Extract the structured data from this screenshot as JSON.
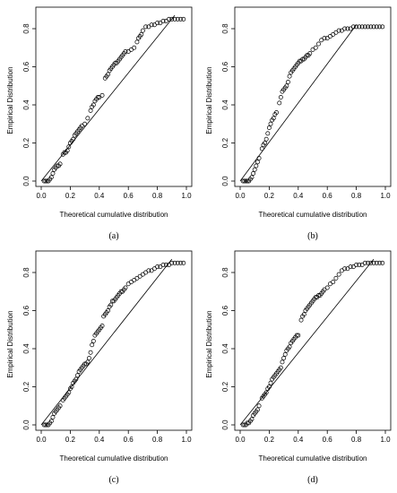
{
  "chart_data": [
    {
      "type": "scatter",
      "panel": "(a)",
      "xlabel": "Theoretical cumulative distribution",
      "ylabel": "Empirical Distribution",
      "xlim": [
        0,
        1
      ],
      "ylim": [
        0,
        0.85
      ],
      "xticks": [
        "0.0",
        "0.2",
        "0.4",
        "0.6",
        "0.8",
        "1.0"
      ],
      "yticks": [
        "0.0",
        "0.2",
        "0.4",
        "0.6",
        "0.8"
      ],
      "reference_line": {
        "from": [
          0,
          0
        ],
        "to": [
          0.92,
          0.87
        ]
      },
      "points": [
        [
          0.02,
          0.0
        ],
        [
          0.03,
          0.0
        ],
        [
          0.04,
          0.0
        ],
        [
          0.05,
          0.0
        ],
        [
          0.06,
          0.01
        ],
        [
          0.07,
          0.02
        ],
        [
          0.08,
          0.04
        ],
        [
          0.09,
          0.06
        ],
        [
          0.1,
          0.07
        ],
        [
          0.11,
          0.08
        ],
        [
          0.12,
          0.08
        ],
        [
          0.13,
          0.09
        ],
        [
          0.15,
          0.14
        ],
        [
          0.16,
          0.15
        ],
        [
          0.17,
          0.15
        ],
        [
          0.18,
          0.16
        ],
        [
          0.19,
          0.18
        ],
        [
          0.2,
          0.2
        ],
        [
          0.21,
          0.21
        ],
        [
          0.22,
          0.22
        ],
        [
          0.23,
          0.24
        ],
        [
          0.24,
          0.25
        ],
        [
          0.25,
          0.26
        ],
        [
          0.26,
          0.27
        ],
        [
          0.27,
          0.28
        ],
        [
          0.28,
          0.29
        ],
        [
          0.3,
          0.3
        ],
        [
          0.32,
          0.33
        ],
        [
          0.34,
          0.37
        ],
        [
          0.35,
          0.39
        ],
        [
          0.36,
          0.4
        ],
        [
          0.37,
          0.42
        ],
        [
          0.38,
          0.43
        ],
        [
          0.39,
          0.44
        ],
        [
          0.4,
          0.44
        ],
        [
          0.42,
          0.45
        ],
        [
          0.44,
          0.54
        ],
        [
          0.45,
          0.55
        ],
        [
          0.46,
          0.56
        ],
        [
          0.47,
          0.58
        ],
        [
          0.48,
          0.59
        ],
        [
          0.49,
          0.6
        ],
        [
          0.5,
          0.61
        ],
        [
          0.51,
          0.62
        ],
        [
          0.52,
          0.62
        ],
        [
          0.53,
          0.63
        ],
        [
          0.54,
          0.64
        ],
        [
          0.55,
          0.65
        ],
        [
          0.56,
          0.66
        ],
        [
          0.57,
          0.67
        ],
        [
          0.58,
          0.68
        ],
        [
          0.6,
          0.68
        ],
        [
          0.62,
          0.69
        ],
        [
          0.64,
          0.7
        ],
        [
          0.66,
          0.73
        ],
        [
          0.67,
          0.75
        ],
        [
          0.68,
          0.76
        ],
        [
          0.69,
          0.77
        ],
        [
          0.7,
          0.79
        ],
        [
          0.72,
          0.81
        ],
        [
          0.74,
          0.81
        ],
        [
          0.76,
          0.82
        ],
        [
          0.78,
          0.82
        ],
        [
          0.8,
          0.83
        ],
        [
          0.82,
          0.83
        ],
        [
          0.84,
          0.84
        ],
        [
          0.86,
          0.84
        ],
        [
          0.88,
          0.85
        ],
        [
          0.9,
          0.85
        ],
        [
          0.92,
          0.85
        ],
        [
          0.94,
          0.85
        ],
        [
          0.96,
          0.85
        ],
        [
          0.98,
          0.85
        ]
      ]
    },
    {
      "type": "scatter",
      "panel": "(b)",
      "xlabel": "Theoretical cumulative distribution",
      "ylabel": "Empirical Distribution",
      "xlim": [
        0,
        1
      ],
      "ylim": [
        0,
        0.8
      ],
      "xticks": [
        "0.0",
        "0.2",
        "0.4",
        "0.6",
        "0.8",
        "1.0"
      ],
      "yticks": [
        "0.0",
        "0.2",
        "0.4",
        "0.6",
        "0.8"
      ],
      "reference_line": {
        "from": [
          0,
          0
        ],
        "to": [
          0.8,
          0.82
        ]
      },
      "points": [
        [
          0.02,
          0.0
        ],
        [
          0.03,
          0.0
        ],
        [
          0.04,
          0.0
        ],
        [
          0.05,
          0.0
        ],
        [
          0.06,
          0.0
        ],
        [
          0.07,
          0.01
        ],
        [
          0.08,
          0.02
        ],
        [
          0.09,
          0.04
        ],
        [
          0.1,
          0.06
        ],
        [
          0.11,
          0.08
        ],
        [
          0.12,
          0.1
        ],
        [
          0.13,
          0.12
        ],
        [
          0.15,
          0.17
        ],
        [
          0.16,
          0.19
        ],
        [
          0.17,
          0.2
        ],
        [
          0.18,
          0.22
        ],
        [
          0.19,
          0.25
        ],
        [
          0.2,
          0.28
        ],
        [
          0.21,
          0.3
        ],
        [
          0.22,
          0.32
        ],
        [
          0.23,
          0.33
        ],
        [
          0.24,
          0.35
        ],
        [
          0.25,
          0.36
        ],
        [
          0.27,
          0.41
        ],
        [
          0.28,
          0.44
        ],
        [
          0.29,
          0.47
        ],
        [
          0.3,
          0.48
        ],
        [
          0.31,
          0.49
        ],
        [
          0.32,
          0.5
        ],
        [
          0.33,
          0.52
        ],
        [
          0.34,
          0.55
        ],
        [
          0.35,
          0.57
        ],
        [
          0.36,
          0.58
        ],
        [
          0.37,
          0.59
        ],
        [
          0.38,
          0.6
        ],
        [
          0.39,
          0.61
        ],
        [
          0.4,
          0.62
        ],
        [
          0.41,
          0.63
        ],
        [
          0.42,
          0.63
        ],
        [
          0.43,
          0.64
        ],
        [
          0.44,
          0.64
        ],
        [
          0.45,
          0.65
        ],
        [
          0.46,
          0.66
        ],
        [
          0.47,
          0.66
        ],
        [
          0.48,
          0.67
        ],
        [
          0.5,
          0.69
        ],
        [
          0.52,
          0.7
        ],
        [
          0.54,
          0.72
        ],
        [
          0.56,
          0.74
        ],
        [
          0.58,
          0.75
        ],
        [
          0.6,
          0.75
        ],
        [
          0.62,
          0.76
        ],
        [
          0.64,
          0.77
        ],
        [
          0.66,
          0.78
        ],
        [
          0.68,
          0.79
        ],
        [
          0.7,
          0.79
        ],
        [
          0.72,
          0.8
        ],
        [
          0.74,
          0.8
        ],
        [
          0.76,
          0.8
        ],
        [
          0.78,
          0.81
        ],
        [
          0.8,
          0.81
        ],
        [
          0.82,
          0.81
        ],
        [
          0.84,
          0.81
        ],
        [
          0.86,
          0.81
        ],
        [
          0.88,
          0.81
        ],
        [
          0.9,
          0.81
        ],
        [
          0.92,
          0.81
        ],
        [
          0.94,
          0.81
        ],
        [
          0.96,
          0.81
        ],
        [
          0.98,
          0.81
        ]
      ]
    },
    {
      "type": "scatter",
      "panel": "(c)",
      "xlabel": "Theoretical cumulative distribution",
      "ylabel": "Empirical Distribution",
      "xlim": [
        0,
        1
      ],
      "ylim": [
        0,
        0.85
      ],
      "xticks": [
        "0.0",
        "0.2",
        "0.4",
        "0.6",
        "0.8",
        "1.0"
      ],
      "yticks": [
        "0.0",
        "0.2",
        "0.4",
        "0.6",
        "0.8"
      ],
      "reference_line": {
        "from": [
          0,
          0
        ],
        "to": [
          0.9,
          0.87
        ]
      },
      "points": [
        [
          0.02,
          0.0
        ],
        [
          0.03,
          0.0
        ],
        [
          0.04,
          0.0
        ],
        [
          0.05,
          0.0
        ],
        [
          0.06,
          0.01
        ],
        [
          0.07,
          0.02
        ],
        [
          0.08,
          0.04
        ],
        [
          0.09,
          0.06
        ],
        [
          0.1,
          0.07
        ],
        [
          0.11,
          0.08
        ],
        [
          0.12,
          0.09
        ],
        [
          0.13,
          0.1
        ],
        [
          0.15,
          0.13
        ],
        [
          0.16,
          0.14
        ],
        [
          0.17,
          0.15
        ],
        [
          0.18,
          0.16
        ],
        [
          0.19,
          0.17
        ],
        [
          0.2,
          0.19
        ],
        [
          0.21,
          0.2
        ],
        [
          0.22,
          0.22
        ],
        [
          0.23,
          0.23
        ],
        [
          0.24,
          0.24
        ],
        [
          0.25,
          0.26
        ],
        [
          0.26,
          0.28
        ],
        [
          0.27,
          0.29
        ],
        [
          0.28,
          0.3
        ],
        [
          0.29,
          0.31
        ],
        [
          0.3,
          0.32
        ],
        [
          0.31,
          0.32
        ],
        [
          0.32,
          0.33
        ],
        [
          0.33,
          0.35
        ],
        [
          0.34,
          0.38
        ],
        [
          0.35,
          0.42
        ],
        [
          0.36,
          0.44
        ],
        [
          0.37,
          0.47
        ],
        [
          0.38,
          0.48
        ],
        [
          0.39,
          0.49
        ],
        [
          0.4,
          0.5
        ],
        [
          0.41,
          0.51
        ],
        [
          0.42,
          0.52
        ],
        [
          0.43,
          0.57
        ],
        [
          0.44,
          0.58
        ],
        [
          0.45,
          0.59
        ],
        [
          0.46,
          0.6
        ],
        [
          0.47,
          0.62
        ],
        [
          0.48,
          0.63
        ],
        [
          0.49,
          0.65
        ],
        [
          0.5,
          0.65
        ],
        [
          0.51,
          0.66
        ],
        [
          0.52,
          0.67
        ],
        [
          0.53,
          0.68
        ],
        [
          0.54,
          0.69
        ],
        [
          0.55,
          0.7
        ],
        [
          0.56,
          0.7
        ],
        [
          0.57,
          0.71
        ],
        [
          0.58,
          0.72
        ],
        [
          0.6,
          0.74
        ],
        [
          0.62,
          0.75
        ],
        [
          0.64,
          0.76
        ],
        [
          0.66,
          0.77
        ],
        [
          0.68,
          0.78
        ],
        [
          0.7,
          0.79
        ],
        [
          0.72,
          0.8
        ],
        [
          0.74,
          0.81
        ],
        [
          0.76,
          0.81
        ],
        [
          0.78,
          0.82
        ],
        [
          0.8,
          0.83
        ],
        [
          0.82,
          0.83
        ],
        [
          0.84,
          0.84
        ],
        [
          0.86,
          0.84
        ],
        [
          0.88,
          0.84
        ],
        [
          0.9,
          0.85
        ],
        [
          0.92,
          0.85
        ],
        [
          0.94,
          0.85
        ],
        [
          0.96,
          0.85
        ],
        [
          0.98,
          0.85
        ]
      ]
    },
    {
      "type": "scatter",
      "panel": "(d)",
      "xlabel": "Theoretical cumulative distribution",
      "ylabel": "Empirical Distribution",
      "xlim": [
        0,
        1
      ],
      "ylim": [
        0,
        0.85
      ],
      "xticks": [
        "0.0",
        "0.2",
        "0.4",
        "0.6",
        "0.8",
        "1.0"
      ],
      "yticks": [
        "0.0",
        "0.2",
        "0.4",
        "0.6",
        "0.8"
      ],
      "reference_line": {
        "from": [
          0,
          0
        ],
        "to": [
          0.92,
          0.87
        ]
      },
      "points": [
        [
          0.02,
          0.0
        ],
        [
          0.03,
          0.0
        ],
        [
          0.04,
          0.0
        ],
        [
          0.05,
          0.01
        ],
        [
          0.06,
          0.01
        ],
        [
          0.07,
          0.02
        ],
        [
          0.08,
          0.03
        ],
        [
          0.09,
          0.05
        ],
        [
          0.1,
          0.06
        ],
        [
          0.11,
          0.07
        ],
        [
          0.12,
          0.08
        ],
        [
          0.13,
          0.1
        ],
        [
          0.15,
          0.14
        ],
        [
          0.16,
          0.15
        ],
        [
          0.17,
          0.16
        ],
        [
          0.18,
          0.17
        ],
        [
          0.19,
          0.19
        ],
        [
          0.2,
          0.2
        ],
        [
          0.21,
          0.22
        ],
        [
          0.22,
          0.24
        ],
        [
          0.23,
          0.25
        ],
        [
          0.24,
          0.26
        ],
        [
          0.25,
          0.27
        ],
        [
          0.26,
          0.28
        ],
        [
          0.27,
          0.29
        ],
        [
          0.28,
          0.3
        ],
        [
          0.29,
          0.33
        ],
        [
          0.3,
          0.35
        ],
        [
          0.31,
          0.37
        ],
        [
          0.32,
          0.39
        ],
        [
          0.33,
          0.4
        ],
        [
          0.34,
          0.41
        ],
        [
          0.35,
          0.43
        ],
        [
          0.36,
          0.44
        ],
        [
          0.37,
          0.45
        ],
        [
          0.38,
          0.46
        ],
        [
          0.39,
          0.47
        ],
        [
          0.4,
          0.47
        ],
        [
          0.42,
          0.55
        ],
        [
          0.43,
          0.57
        ],
        [
          0.44,
          0.58
        ],
        [
          0.45,
          0.6
        ],
        [
          0.46,
          0.61
        ],
        [
          0.47,
          0.62
        ],
        [
          0.48,
          0.63
        ],
        [
          0.49,
          0.64
        ],
        [
          0.5,
          0.65
        ],
        [
          0.51,
          0.66
        ],
        [
          0.52,
          0.67
        ],
        [
          0.53,
          0.67
        ],
        [
          0.54,
          0.68
        ],
        [
          0.55,
          0.68
        ],
        [
          0.56,
          0.69
        ],
        [
          0.57,
          0.7
        ],
        [
          0.58,
          0.71
        ],
        [
          0.6,
          0.72
        ],
        [
          0.62,
          0.74
        ],
        [
          0.64,
          0.75
        ],
        [
          0.66,
          0.77
        ],
        [
          0.68,
          0.79
        ],
        [
          0.7,
          0.81
        ],
        [
          0.72,
          0.82
        ],
        [
          0.74,
          0.82
        ],
        [
          0.76,
          0.83
        ],
        [
          0.78,
          0.83
        ],
        [
          0.8,
          0.84
        ],
        [
          0.82,
          0.84
        ],
        [
          0.84,
          0.84
        ],
        [
          0.86,
          0.85
        ],
        [
          0.88,
          0.85
        ],
        [
          0.9,
          0.85
        ],
        [
          0.92,
          0.85
        ],
        [
          0.94,
          0.85
        ],
        [
          0.96,
          0.85
        ],
        [
          0.98,
          0.85
        ]
      ]
    }
  ]
}
